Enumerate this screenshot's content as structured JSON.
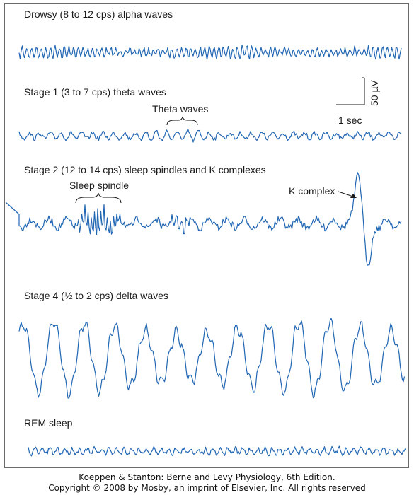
{
  "colors": {
    "trace": "#2166b3",
    "text": "#1a1a1a",
    "frame": "#6b6b6b"
  },
  "traces": [
    {
      "id": "drowsy",
      "title": "Drowsy (8 to 12 cps) alpha waves"
    },
    {
      "id": "stage1",
      "title": "Stage 1 (3 to 7 cps) theta waves",
      "annotation": "Theta waves"
    },
    {
      "id": "stage2",
      "title": "Stage 2 (12 to 14 cps) sleep spindles and K complexes",
      "annotation": "Sleep spindle",
      "annotation2": "K complex"
    },
    {
      "id": "stage4",
      "title": "Stage 4 (½ to 2 cps) delta waves"
    },
    {
      "id": "rem",
      "title": "REM sleep"
    }
  ],
  "scale_bar": {
    "voltage": "50 µV",
    "time": "1 sec"
  },
  "citation": {
    "line1": "Koeppen & Stanton: Berne and Levy Physiology, 6th Edition.",
    "line2": "Copyright © 2008 by Mosby, an imprint of Elsevier, Inc. All rights reserved"
  }
}
